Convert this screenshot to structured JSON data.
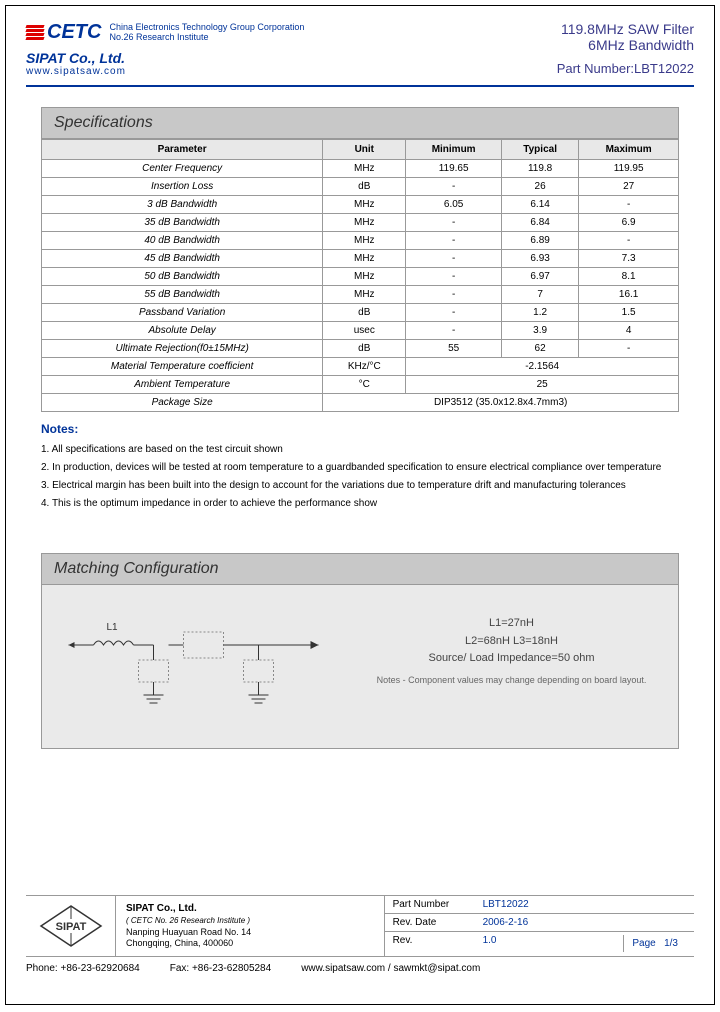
{
  "header": {
    "cetc_name": "CETC",
    "cetc_sub1": "China Electronics Technology Group Corporation",
    "cetc_sub2": "No.26 Research Institute",
    "sipat": "SIPAT Co., Ltd.",
    "website": "www.sipatsaw.com",
    "title1": "119.8MHz SAW Filter",
    "title2": "6MHz Bandwidth",
    "part_number_label": "Part Number:LBT12022"
  },
  "spec": {
    "title": "Specifications",
    "columns": [
      "Parameter",
      "Unit",
      "Minimum",
      "Typical",
      "Maximum"
    ],
    "rows": [
      [
        "Center Frequency",
        "MHz",
        "119.65",
        "119.8",
        "119.95"
      ],
      [
        "Insertion Loss",
        "dB",
        "-",
        "26",
        "27"
      ],
      [
        "3 dB Bandwidth",
        "MHz",
        "6.05",
        "6.14",
        "-"
      ],
      [
        "35 dB Bandwidth",
        "MHz",
        "-",
        "6.84",
        "6.9"
      ],
      [
        "40 dB Bandwidth",
        "MHz",
        "-",
        "6.89",
        "-"
      ],
      [
        "45 dB Bandwidth",
        "MHz",
        "-",
        "6.93",
        "7.3"
      ],
      [
        "50 dB Bandwidth",
        "MHz",
        "-",
        "6.97",
        "8.1"
      ],
      [
        "55 dB Bandwidth",
        "MHz",
        "-",
        "7",
        "16.1"
      ],
      [
        "Passband Variation",
        "dB",
        "-",
        "1.2",
        "1.5"
      ],
      [
        "Absolute Delay",
        "usec",
        "-",
        "3.9",
        "4"
      ],
      [
        "Ultimate Rejection(f0±15MHz)",
        "dB",
        "55",
        "62",
        "-"
      ]
    ],
    "temp_coef_row": {
      "param": "Material Temperature coefficient",
      "unit": "KHz/°C",
      "value": "-2.1564"
    },
    "ambient_row": {
      "param": "Ambient Temperature",
      "unit": "°C",
      "value": "25"
    },
    "package_row": {
      "param": "Package Size",
      "value": "DIP3512   (35.0x12.8x4.7mm3)"
    }
  },
  "notes": {
    "title": "Notes:",
    "items": [
      "1. All specifications are based on the test circuit shown",
      "2. In production, devices will be tested at room temperature to a guardbanded specification to ensure electrical compliance over temperature",
      "3. Electrical margin has been built into the design to account for the variations due to temperature drift and manufacturing tolerances",
      "4. This is the optimum impedance in order to achieve the performance show"
    ]
  },
  "matching": {
    "title": "Matching Configuration",
    "l1_label": "L1",
    "values": [
      "L1=27nH",
      "L2=68nH   L3=18nH",
      "Source/ Load Impedance=50 ohm"
    ],
    "note": "Notes - Component values may change depending on board layout."
  },
  "footer": {
    "company": "SIPAT Co., Ltd.",
    "institute": "( CETC No. 26 Research Institute )",
    "addr1": "Nanping Huayuan Road No. 14",
    "addr2": "Chongqing, China, 400060",
    "part_number_label": "Part Number",
    "part_number": "LBT12022",
    "rev_date_label": "Rev. Date",
    "rev_date": "2006-2-16",
    "rev_label": "Rev.",
    "rev": "1.0",
    "page_label": "Page",
    "page": "1/3",
    "phone": "Phone: +86-23-62920684",
    "fax": "Fax: +86-23-62805284",
    "web_email": "www.sipatsaw.com / sawmkt@sipat.com"
  }
}
